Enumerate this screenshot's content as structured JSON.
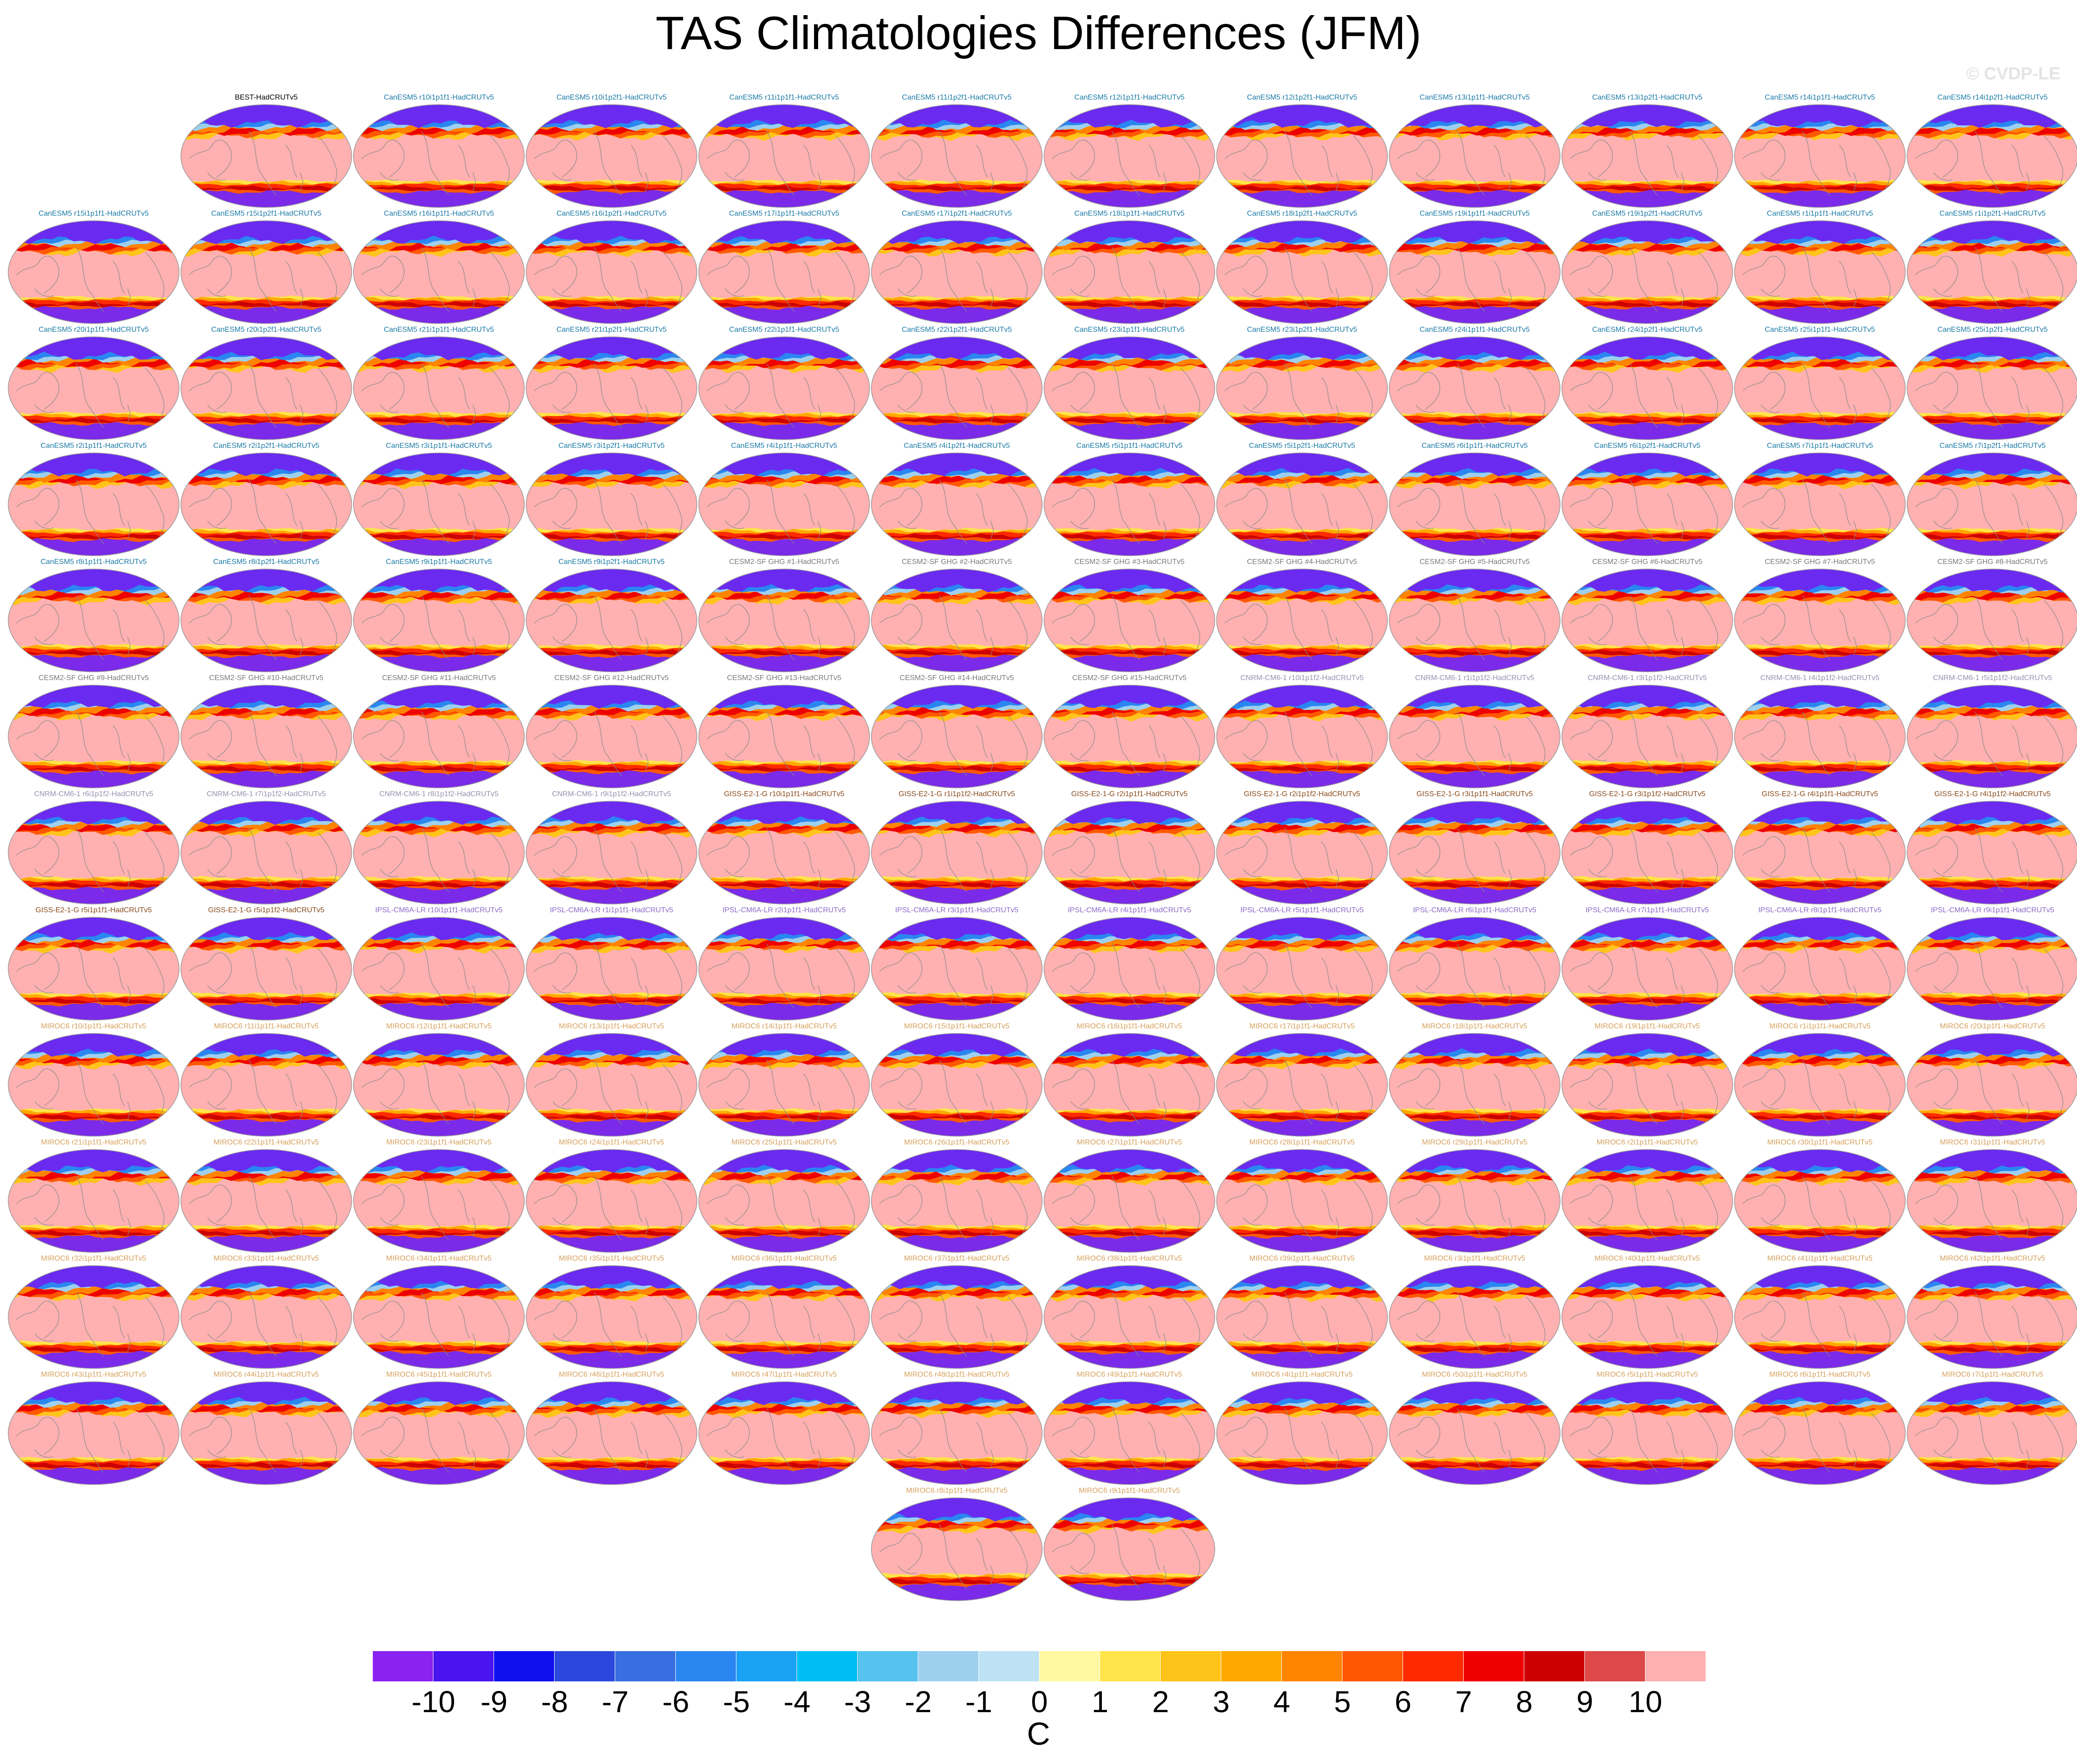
{
  "figure": {
    "title": "TAS Climatologies Differences (JFM)",
    "watermark": "© CVDP-LE"
  },
  "chart_data": {
    "type": "heatmap",
    "variable": "TAS",
    "season": "JFM",
    "map_projection": "robinson",
    "panels": [
      {
        "label": "BEST-HadCRUTv5",
        "group": "obs"
      },
      {
        "label": "CanESM5 r10i1p1f1-HadCRUTv5",
        "group": "CanESM5"
      },
      {
        "label": "CanESM5 r10i1p2f1-HadCRUTv5",
        "group": "CanESM5"
      },
      {
        "label": "CanESM5 r11i1p1f1-HadCRUTv5",
        "group": "CanESM5"
      },
      {
        "label": "CanESM5 r11i1p2f1-HadCRUTv5",
        "group": "CanESM5"
      },
      {
        "label": "CanESM5 r12i1p1f1-HadCRUTv5",
        "group": "CanESM5"
      },
      {
        "label": "CanESM5 r12i1p2f1-HadCRUTv5",
        "group": "CanESM5"
      },
      {
        "label": "CanESM5 r13i1p1f1-HadCRUTv5",
        "group": "CanESM5"
      },
      {
        "label": "CanESM5 r13i1p2f1-HadCRUTv5",
        "group": "CanESM5"
      },
      {
        "label": "CanESM5 r14i1p1f1-HadCRUTv5",
        "group": "CanESM5"
      },
      {
        "label": "CanESM5 r14i1p2f1-HadCRUTv5",
        "group": "CanESM5"
      },
      {
        "label": "CanESM5 r15i1p1f1-HadCRUTv5",
        "group": "CanESM5"
      },
      {
        "label": "CanESM5 r15i1p2f1-HadCRUTv5",
        "group": "CanESM5"
      },
      {
        "label": "CanESM5 r16i1p1f1-HadCRUTv5",
        "group": "CanESM5"
      },
      {
        "label": "CanESM5 r16i1p2f1-HadCRUTv5",
        "group": "CanESM5"
      },
      {
        "label": "CanESM5 r17i1p1f1-HadCRUTv5",
        "group": "CanESM5"
      },
      {
        "label": "CanESM5 r17i1p2f1-HadCRUTv5",
        "group": "CanESM5"
      },
      {
        "label": "CanESM5 r18i1p1f1-HadCRUTv5",
        "group": "CanESM5"
      },
      {
        "label": "CanESM5 r18i1p2f1-HadCRUTv5",
        "group": "CanESM5"
      },
      {
        "label": "CanESM5 r19i1p1f1-HadCRUTv5",
        "group": "CanESM5"
      },
      {
        "label": "CanESM5 r19i1p2f1-HadCRUTv5",
        "group": "CanESM5"
      },
      {
        "label": "CanESM5 r1i1p1f1-HadCRUTv5",
        "group": "CanESM5"
      },
      {
        "label": "CanESM5 r1i1p2f1-HadCRUTv5",
        "group": "CanESM5"
      },
      {
        "label": "CanESM5 r20i1p1f1-HadCRUTv5",
        "group": "CanESM5"
      },
      {
        "label": "CanESM5 r20i1p2f1-HadCRUTv5",
        "group": "CanESM5"
      },
      {
        "label": "CanESM5 r21i1p1f1-HadCRUTv5",
        "group": "CanESM5"
      },
      {
        "label": "CanESM5 r21i1p2f1-HadCRUTv5",
        "group": "CanESM5"
      },
      {
        "label": "CanESM5 r22i1p1f1-HadCRUTv5",
        "group": "CanESM5"
      },
      {
        "label": "CanESM5 r22i1p2f1-HadCRUTv5",
        "group": "CanESM5"
      },
      {
        "label": "CanESM5 r23i1p1f1-HadCRUTv5",
        "group": "CanESM5"
      },
      {
        "label": "CanESM5 r23i1p2f1-HadCRUTv5",
        "group": "CanESM5"
      },
      {
        "label": "CanESM5 r24i1p1f1-HadCRUTv5",
        "group": "CanESM5"
      },
      {
        "label": "CanESM5 r24i1p2f1-HadCRUTv5",
        "group": "CanESM5"
      },
      {
        "label": "CanESM5 r25i1p1f1-HadCRUTv5",
        "group": "CanESM5"
      },
      {
        "label": "CanESM5 r25i1p2f1-HadCRUTv5",
        "group": "CanESM5"
      },
      {
        "label": "CanESM5 r2i1p1f1-HadCRUTv5",
        "group": "CanESM5"
      },
      {
        "label": "CanESM5 r2i1p2f1-HadCRUTv5",
        "group": "CanESM5"
      },
      {
        "label": "CanESM5 r3i1p1f1-HadCRUTv5",
        "group": "CanESM5"
      },
      {
        "label": "CanESM5 r3i1p2f1-HadCRUTv5",
        "group": "CanESM5"
      },
      {
        "label": "CanESM5 r4i1p1f1-HadCRUTv5",
        "group": "CanESM5"
      },
      {
        "label": "CanESM5 r4i1p2f1-HadCRUTv5",
        "group": "CanESM5"
      },
      {
        "label": "CanESM5 r5i1p1f1-HadCRUTv5",
        "group": "CanESM5"
      },
      {
        "label": "CanESM5 r5i1p2f1-HadCRUTv5",
        "group": "CanESM5"
      },
      {
        "label": "CanESM5 r6i1p1f1-HadCRUTv5",
        "group": "CanESM5"
      },
      {
        "label": "CanESM5 r6i1p2f1-HadCRUTv5",
        "group": "CanESM5"
      },
      {
        "label": "CanESM5 r7i1p1f1-HadCRUTv5",
        "group": "CanESM5"
      },
      {
        "label": "CanESM5 r7i1p2f1-HadCRUTv5",
        "group": "CanESM5"
      },
      {
        "label": "CanESM5 r8i1p1f1-HadCRUTv5",
        "group": "CanESM5"
      },
      {
        "label": "CanESM5 r8i1p2f1-HadCRUTv5",
        "group": "CanESM5"
      },
      {
        "label": "CanESM5 r9i1p1f1-HadCRUTv5",
        "group": "CanESM5"
      },
      {
        "label": "CanESM5 r9i1p2f1-HadCRUTv5",
        "group": "CanESM5"
      },
      {
        "label": "CESM2-SF GHG #1-HadCRUTv5",
        "group": "CESM2"
      },
      {
        "label": "CESM2-SF GHG #2-HadCRUTv5",
        "group": "CESM2"
      },
      {
        "label": "CESM2-SF GHG #3-HadCRUTv5",
        "group": "CESM2"
      },
      {
        "label": "CESM2-SF GHG #4-HadCRUTv5",
        "group": "CESM2"
      },
      {
        "label": "CESM2-SF GHG #5-HadCRUTv5",
        "group": "CESM2"
      },
      {
        "label": "CESM2-SF GHG #6-HadCRUTv5",
        "group": "CESM2"
      },
      {
        "label": "CESM2-SF GHG #7-HadCRUTv5",
        "group": "CESM2"
      },
      {
        "label": "CESM2-SF GHG #8-HadCRUTv5",
        "group": "CESM2"
      },
      {
        "label": "CESM2-SF GHG #9-HadCRUTv5",
        "group": "CESM2"
      },
      {
        "label": "CESM2-SF GHG #10-HadCRUTv5",
        "group": "CESM2"
      },
      {
        "label": "CESM2-SF GHG #11-HadCRUTv5",
        "group": "CESM2"
      },
      {
        "label": "CESM2-SF GHG #12-HadCRUTv5",
        "group": "CESM2"
      },
      {
        "label": "CESM2-SF GHG #13-HadCRUTv5",
        "group": "CESM2"
      },
      {
        "label": "CESM2-SF GHG #14-HadCRUTv5",
        "group": "CESM2"
      },
      {
        "label": "CESM2-SF GHG #15-HadCRUTv5",
        "group": "CESM2"
      },
      {
        "label": "CNRM-CM6-1 r10i1p1f2-HadCRUTv5",
        "group": "CNRM"
      },
      {
        "label": "CNRM-CM6-1 r1i1p1f2-HadCRUTv5",
        "group": "CNRM"
      },
      {
        "label": "CNRM-CM6-1 r3i1p1f2-HadCRUTv5",
        "group": "CNRM"
      },
      {
        "label": "CNRM-CM6-1 r4i1p1f2-HadCRUTv5",
        "group": "CNRM"
      },
      {
        "label": "CNRM-CM6-1 r5i1p1f2-HadCRUTv5",
        "group": "CNRM"
      },
      {
        "label": "CNRM-CM6-1 r6i1p1f2-HadCRUTv5",
        "group": "CNRM"
      },
      {
        "label": "CNRM-CM6-1 r7i1p1f2-HadCRUTv5",
        "group": "CNRM"
      },
      {
        "label": "CNRM-CM6-1 r8i1p1f2-HadCRUTv5",
        "group": "CNRM"
      },
      {
        "label": "CNRM-CM6-1 r9i1p1f2-HadCRUTv5",
        "group": "CNRM"
      },
      {
        "label": "GISS-E2-1-G r10i1p1f1-HadCRUTv5",
        "group": "GISS"
      },
      {
        "label": "GISS-E2-1-G r1i1p1f2-HadCRUTv5",
        "group": "GISS"
      },
      {
        "label": "GISS-E2-1-G r2i1p1f1-HadCRUTv5",
        "group": "GISS"
      },
      {
        "label": "GISS-E2-1-G r2i1p1f2-HadCRUTv5",
        "group": "GISS"
      },
      {
        "label": "GISS-E2-1-G r3i1p1f1-HadCRUTv5",
        "group": "GISS"
      },
      {
        "label": "GISS-E2-1-G r3i1p1f2-HadCRUTv5",
        "group": "GISS"
      },
      {
        "label": "GISS-E2-1-G r4i1p1f1-HadCRUTv5",
        "group": "GISS"
      },
      {
        "label": "GISS-E2-1-G r4i1p1f2-HadCRUTv5",
        "group": "GISS"
      },
      {
        "label": "GISS-E2-1-G r5i1p1f1-HadCRUTv5",
        "group": "GISS"
      },
      {
        "label": "GISS-E2-1-G r5i1p1f2-HadCRUTv5",
        "group": "GISS"
      },
      {
        "label": "IPSL-CM6A-LR r10i1p1f1-HadCRUTv5",
        "group": "IPSL"
      },
      {
        "label": "IPSL-CM6A-LR r1i1p1f1-HadCRUTv5",
        "group": "IPSL"
      },
      {
        "label": "IPSL-CM6A-LR r2i1p1f1-HadCRUTv5",
        "group": "IPSL"
      },
      {
        "label": "IPSL-CM6A-LR r3i1p1f1-HadCRUTv5",
        "group": "IPSL"
      },
      {
        "label": "IPSL-CM6A-LR r4i1p1f1-HadCRUTv5",
        "group": "IPSL"
      },
      {
        "label": "IPSL-CM6A-LR r5i1p1f1-HadCRUTv5",
        "group": "IPSL"
      },
      {
        "label": "IPSL-CM6A-LR r6i1p1f1-HadCRUTv5",
        "group": "IPSL"
      },
      {
        "label": "IPSL-CM6A-LR r7i1p1f1-HadCRUTv5",
        "group": "IPSL"
      },
      {
        "label": "IPSL-CM6A-LR r8i1p1f1-HadCRUTv5",
        "group": "IPSL"
      },
      {
        "label": "IPSL-CM6A-LR r9i1p1f1-HadCRUTv5",
        "group": "IPSL"
      },
      {
        "label": "MIROC6 r10i1p1f1-HadCRUTv5",
        "group": "MIROC6"
      },
      {
        "label": "MIROC6 r11i1p1f1-HadCRUTv5",
        "group": "MIROC6"
      },
      {
        "label": "MIROC6 r12i1p1f1-HadCRUTv5",
        "group": "MIROC6"
      },
      {
        "label": "MIROC6 r13i1p1f1-HadCRUTv5",
        "group": "MIROC6"
      },
      {
        "label": "MIROC6 r14i1p1f1-HadCRUTv5",
        "group": "MIROC6"
      },
      {
        "label": "MIROC6 r15i1p1f1-HadCRUTv5",
        "group": "MIROC6"
      },
      {
        "label": "MIROC6 r16i1p1f1-HadCRUTv5",
        "group": "MIROC6"
      },
      {
        "label": "MIROC6 r17i1p1f1-HadCRUTv5",
        "group": "MIROC6"
      },
      {
        "label": "MIROC6 r18i1p1f1-HadCRUTv5",
        "group": "MIROC6"
      },
      {
        "label": "MIROC6 r19i1p1f1-HadCRUTv5",
        "group": "MIROC6"
      },
      {
        "label": "MIROC6 r1i1p1f1-HadCRUTv5",
        "group": "MIROC6"
      },
      {
        "label": "MIROC6 r20i1p1f1-HadCRUTv5",
        "group": "MIROC6"
      },
      {
        "label": "MIROC6 r21i1p1f1-HadCRUTv5",
        "group": "MIROC6"
      },
      {
        "label": "MIROC6 r22i1p1f1-HadCRUTv5",
        "group": "MIROC6"
      },
      {
        "label": "MIROC6 r23i1p1f1-HadCRUTv5",
        "group": "MIROC6"
      },
      {
        "label": "MIROC6 r24i1p1f1-HadCRUTv5",
        "group": "MIROC6"
      },
      {
        "label": "MIROC6 r25i1p1f1-HadCRUTv5",
        "group": "MIROC6"
      },
      {
        "label": "MIROC6 r26i1p1f1-HadCRUTv5",
        "group": "MIROC6"
      },
      {
        "label": "MIROC6 r27i1p1f1-HadCRUTv5",
        "group": "MIROC6"
      },
      {
        "label": "MIROC6 r28i1p1f1-HadCRUTv5",
        "group": "MIROC6"
      },
      {
        "label": "MIROC6 r29i1p1f1-HadCRUTv5",
        "group": "MIROC6"
      },
      {
        "label": "MIROC6 r2i1p1f1-HadCRUTv5",
        "group": "MIROC6"
      },
      {
        "label": "MIROC6 r30i1p1f1-HadCRUTv5",
        "group": "MIROC6"
      },
      {
        "label": "MIROC6 r31i1p1f1-HadCRUTv5",
        "group": "MIROC6"
      },
      {
        "label": "MIROC6 r32i1p1f1-HadCRUTv5",
        "group": "MIROC6"
      },
      {
        "label": "MIROC6 r33i1p1f1-HadCRUTv5",
        "group": "MIROC6"
      },
      {
        "label": "MIROC6 r34i1p1f1-HadCRUTv5",
        "group": "MIROC6"
      },
      {
        "label": "MIROC6 r35i1p1f1-HadCRUTv5",
        "group": "MIROC6"
      },
      {
        "label": "MIROC6 r36i1p1f1-HadCRUTv5",
        "group": "MIROC6"
      },
      {
        "label": "MIROC6 r37i1p1f1-HadCRUTv5",
        "group": "MIROC6"
      },
      {
        "label": "MIROC6 r38i1p1f1-HadCRUTv5",
        "group": "MIROC6"
      },
      {
        "label": "MIROC6 r39i1p1f1-HadCRUTv5",
        "group": "MIROC6"
      },
      {
        "label": "MIROC6 r3i1p1f1-HadCRUTv5",
        "group": "MIROC6"
      },
      {
        "label": "MIROC6 r40i1p1f1-HadCRUTv5",
        "group": "MIROC6"
      },
      {
        "label": "MIROC6 r41i1p1f1-HadCRUTv5",
        "group": "MIROC6"
      },
      {
        "label": "MIROC6 r42i1p1f1-HadCRUTv5",
        "group": "MIROC6"
      },
      {
        "label": "MIROC6 r43i1p1f1-HadCRUTv5",
        "group": "MIROC6"
      },
      {
        "label": "MIROC6 r44i1p1f1-HadCRUTv5",
        "group": "MIROC6"
      },
      {
        "label": "MIROC6 r45i1p1f1-HadCRUTv5",
        "group": "MIROC6"
      },
      {
        "label": "MIROC6 r46i1p1f1-HadCRUTv5",
        "group": "MIROC6"
      },
      {
        "label": "MIROC6 r47i1p1f1-HadCRUTv5",
        "group": "MIROC6"
      },
      {
        "label": "MIROC6 r48i1p1f1-HadCRUTv5",
        "group": "MIROC6"
      },
      {
        "label": "MIROC6 r49i1p1f1-HadCRUTv5",
        "group": "MIROC6"
      },
      {
        "label": "MIROC6 r4i1p1f1-HadCRUTv5",
        "group": "MIROC6"
      },
      {
        "label": "MIROC6 r50i1p1f1-HadCRUTv5",
        "group": "MIROC6"
      },
      {
        "label": "MIROC6 r5i1p1f1-HadCRUTv5",
        "group": "MIROC6"
      },
      {
        "label": "MIROC6 r6i1p1f1-HadCRUTv5",
        "group": "MIROC6"
      },
      {
        "label": "MIROC6 r7i1p1f1-HadCRUTv5",
        "group": "MIROC6"
      },
      {
        "label": "MIROC6 r8i1p1f1-HadCRUTv5",
        "group": "MIROC6"
      },
      {
        "label": "MIROC6 r9i1p1f1-HadCRUTv5",
        "group": "MIROC6"
      }
    ],
    "group_title_colors": {
      "obs": "#000000",
      "CanESM5": "#1b7aa6",
      "CESM2": "#7a7a7a",
      "CNRM": "#9a8fb0",
      "GISS": "#8a4a1a",
      "IPSL": "#8a6ac8",
      "MIROC6": "#d7a05a"
    },
    "colorbar": {
      "units": "C",
      "levels": [
        -10,
        -9,
        -8,
        -7,
        -6,
        -5,
        -4,
        -3,
        -2,
        -1,
        0,
        1,
        2,
        3,
        4,
        5,
        6,
        7,
        8,
        9,
        10
      ],
      "colors": [
        "#8a22f0",
        "#4a14f0",
        "#1010ee",
        "#2c48dc",
        "#386ee0",
        "#2a86f0",
        "#1aa2f4",
        "#00bef4",
        "#56c2ee",
        "#9ed0ee",
        "#bee2f4",
        "#fff8a0",
        "#ffe44a",
        "#ffc41a",
        "#ffa800",
        "#ff8400",
        "#ff5800",
        "#ff2a00",
        "#ee0000",
        "#cc0000",
        "#dd4848",
        "#ffb0b0"
      ]
    },
    "fields": {
      "background": "#ffb0b0",
      "arctic": "#6a2af0",
      "antarctic": "#7a2ae8",
      "coast": "#8a8a8a",
      "outline": "#9a9a9a"
    }
  }
}
